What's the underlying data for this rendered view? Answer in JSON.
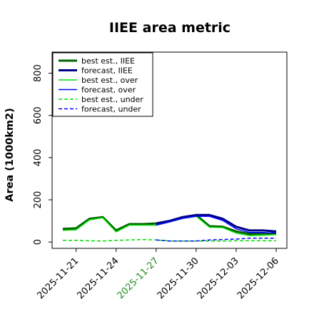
{
  "chart_data": {
    "type": "line",
    "title": "IIEE area metric",
    "ylabel": "Area (1000km2)",
    "xlabel": "",
    "ylim": [
      -30,
      900
    ],
    "yticks": [
      0,
      200,
      400,
      600,
      800
    ],
    "x": [
      "2025-11-20",
      "2025-11-21",
      "2025-11-22",
      "2025-11-23",
      "2025-11-24",
      "2025-11-25",
      "2025-11-26",
      "2025-11-27",
      "2025-11-28",
      "2025-11-29",
      "2025-11-30",
      "2025-12-01",
      "2025-12-02",
      "2025-12-03",
      "2025-12-04",
      "2025-12-05",
      "2025-12-06"
    ],
    "xticks": [
      "2025-11-21",
      "2025-11-24",
      "2025-11-27",
      "2025-11-30",
      "2025-12-03",
      "2025-12-06"
    ],
    "highlight_tick": "2025-11-27",
    "highlight_color": "#228b22",
    "legend_position": "upper left",
    "grid": false,
    "series": [
      {
        "name": "best est., IIEE",
        "color": "#006400",
        "width": 3,
        "dash": "",
        "x": [
          "2025-11-20",
          "2025-11-21",
          "2025-11-22",
          "2025-11-23",
          "2025-11-24",
          "2025-11-25",
          "2025-11-26",
          "2025-11-27",
          "2025-11-28",
          "2025-11-29",
          "2025-11-30",
          "2025-12-01",
          "2025-12-02",
          "2025-12-03",
          "2025-12-04",
          "2025-12-05",
          "2025-12-06"
        ],
        "values": [
          62,
          65,
          110,
          118,
          55,
          85,
          85,
          88,
          100,
          118,
          128,
          75,
          72,
          50,
          38,
          40,
          42
        ]
      },
      {
        "name": "forecast, IIEE",
        "color": "#00008b",
        "width": 3,
        "dash": "",
        "x": [
          "2025-11-27",
          "2025-11-28",
          "2025-11-29",
          "2025-11-30",
          "2025-12-01",
          "2025-12-02",
          "2025-12-03",
          "2025-12-04",
          "2025-12-05",
          "2025-12-06"
        ],
        "values": [
          88,
          100,
          118,
          128,
          128,
          110,
          72,
          55,
          55,
          50
        ]
      },
      {
        "name": "best est., over",
        "color": "#00dd00",
        "width": 1.5,
        "dash": "",
        "x": [
          "2025-11-20",
          "2025-11-21",
          "2025-11-22",
          "2025-11-23",
          "2025-11-24",
          "2025-11-25",
          "2025-11-26",
          "2025-11-27",
          "2025-11-28",
          "2025-11-29",
          "2025-11-30",
          "2025-12-01",
          "2025-12-02",
          "2025-12-03",
          "2025-12-04",
          "2025-12-05",
          "2025-12-06"
        ],
        "values": [
          55,
          58,
          105,
          115,
          48,
          80,
          80,
          80,
          95,
          112,
          122,
          70,
          68,
          42,
          30,
          32,
          35
        ]
      },
      {
        "name": "forecast, over",
        "color": "#0000ff",
        "width": 1.5,
        "dash": "",
        "x": [
          "2025-11-27",
          "2025-11-28",
          "2025-11-29",
          "2025-11-30",
          "2025-12-01",
          "2025-12-02",
          "2025-12-03",
          "2025-12-04",
          "2025-12-05",
          "2025-12-06"
        ],
        "values": [
          80,
          95,
          112,
          122,
          122,
          102,
          62,
          45,
          45,
          42
        ]
      },
      {
        "name": "best est., under",
        "color": "#00dd00",
        "width": 1.5,
        "dash": "5,3",
        "x": [
          "2025-11-20",
          "2025-11-21",
          "2025-11-22",
          "2025-11-23",
          "2025-11-24",
          "2025-11-25",
          "2025-11-26",
          "2025-11-27",
          "2025-11-28",
          "2025-11-29",
          "2025-11-30",
          "2025-12-01",
          "2025-12-02",
          "2025-12-03",
          "2025-12-04",
          "2025-12-05",
          "2025-12-06"
        ],
        "values": [
          8,
          8,
          6,
          5,
          8,
          10,
          12,
          10,
          5,
          5,
          5,
          5,
          5,
          6,
          6,
          6,
          6
        ]
      },
      {
        "name": "forecast, under",
        "color": "#0000ff",
        "width": 1.5,
        "dash": "5,3",
        "x": [
          "2025-11-27",
          "2025-11-28",
          "2025-11-29",
          "2025-11-30",
          "2025-12-01",
          "2025-12-02",
          "2025-12-03",
          "2025-12-04",
          "2025-12-05",
          "2025-12-06"
        ],
        "values": [
          10,
          5,
          5,
          5,
          10,
          12,
          14,
          18,
          18,
          18
        ]
      }
    ]
  }
}
